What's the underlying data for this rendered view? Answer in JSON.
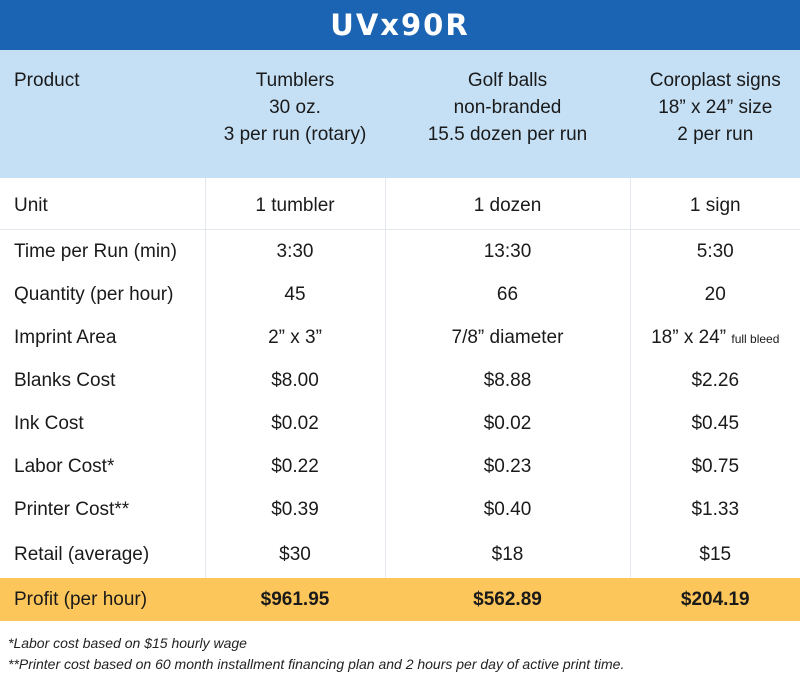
{
  "title": "UVx90R",
  "columns": [
    {
      "lines": [
        "Product"
      ]
    },
    {
      "lines": [
        "Tumblers",
        "30 oz.",
        "3 per run (rotary)"
      ]
    },
    {
      "lines": [
        "Golf balls",
        "non-branded",
        "15.5 dozen per run"
      ]
    },
    {
      "lines": [
        "Coroplast signs",
        "18” x 24” size",
        "2 per run"
      ]
    }
  ],
  "rows": [
    {
      "label": "Unit",
      "values": [
        "1 tumbler",
        "1 dozen",
        "1 sign"
      ]
    },
    {
      "label": "Time per Run (min)",
      "values": [
        "3:30",
        "13:30",
        "5:30"
      ]
    },
    {
      "label": "Quantity (per hour)",
      "values": [
        "45",
        "66",
        "20"
      ]
    },
    {
      "label": "Imprint Area",
      "values": [
        "2” x 3”",
        "7/8” diameter",
        "18” x 24”"
      ],
      "note": "full bleed"
    },
    {
      "label": "Blanks Cost",
      "values": [
        "$8.00",
        "$8.88",
        "$2.26"
      ]
    },
    {
      "label": "Ink Cost",
      "values": [
        "$0.02",
        "$0.02",
        "$0.45"
      ]
    },
    {
      "label": "Labor Cost*",
      "values": [
        "$0.22",
        "$0.23",
        "$0.75"
      ]
    },
    {
      "label": "Printer Cost**",
      "values": [
        "$0.39",
        "$0.40",
        "$1.33"
      ]
    },
    {
      "label": "Retail (average)",
      "values": [
        "$30",
        "$18",
        "$15"
      ]
    }
  ],
  "profit": {
    "label": "Profit (per hour)",
    "values": [
      "$961.95",
      "$562.89",
      "$204.19"
    ]
  },
  "footnotes": [
    "*Labor cost based on $15 hourly wage",
    "**Printer cost based on 60 month installment financing plan and 2 hours per day of active print time."
  ],
  "colors": {
    "banner": "#1b63b3",
    "header": "#c5e0f5",
    "profit": "#fdc65b"
  }
}
